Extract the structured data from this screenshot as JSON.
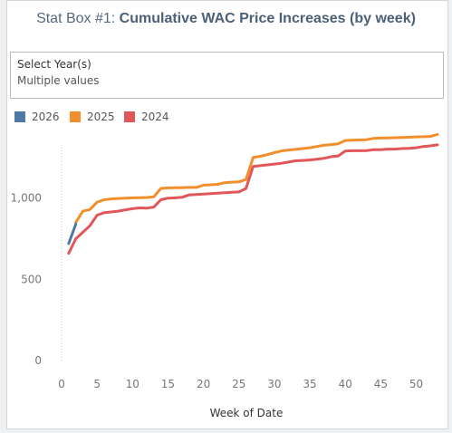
{
  "header": {
    "title_prefix": "Stat Box #1: ",
    "title_main": "Cumulative WAC Price Increases (by week)"
  },
  "filter": {
    "label": "Select Year(s)",
    "value": "Multiple values"
  },
  "chart_data": {
    "type": "line",
    "xlabel": "Week of Date",
    "ylabel": "",
    "xlim": [
      0,
      53
    ],
    "ylim": [
      0,
      1400
    ],
    "x_ticks": [
      0,
      5,
      10,
      15,
      20,
      25,
      30,
      35,
      40,
      45,
      50
    ],
    "y_ticks": [
      0,
      500,
      1000
    ],
    "y_tick_labels": [
      "0",
      "500",
      "1,000"
    ],
    "legend_position": "top-left",
    "series": [
      {
        "name": "2024",
        "color": "#e15759",
        "points": [
          [
            1,
            660
          ],
          [
            2,
            750
          ],
          [
            3,
            790
          ],
          [
            4,
            830
          ],
          [
            5,
            895
          ],
          [
            6,
            910
          ],
          [
            7,
            915
          ],
          [
            8,
            920
          ],
          [
            9,
            928
          ],
          [
            10,
            935
          ],
          [
            11,
            940
          ],
          [
            12,
            938
          ],
          [
            13,
            945
          ],
          [
            14,
            990
          ],
          [
            15,
            1000
          ],
          [
            16,
            1002
          ],
          [
            17,
            1005
          ],
          [
            18,
            1020
          ],
          [
            19,
            1022
          ],
          [
            20,
            1025
          ],
          [
            21,
            1028
          ],
          [
            22,
            1030
          ],
          [
            23,
            1033
          ],
          [
            24,
            1036
          ],
          [
            25,
            1038
          ],
          [
            26,
            1060
          ],
          [
            27,
            1195
          ],
          [
            28,
            1200
          ],
          [
            29,
            1205
          ],
          [
            30,
            1210
          ],
          [
            31,
            1215
          ],
          [
            32,
            1222
          ],
          [
            33,
            1230
          ],
          [
            34,
            1232
          ],
          [
            35,
            1235
          ],
          [
            36,
            1240
          ],
          [
            37,
            1245
          ],
          [
            38,
            1255
          ],
          [
            39,
            1260
          ],
          [
            40,
            1290
          ],
          [
            41,
            1292
          ],
          [
            42,
            1292
          ],
          [
            43,
            1293
          ],
          [
            44,
            1298
          ],
          [
            45,
            1298
          ],
          [
            46,
            1302
          ],
          [
            47,
            1302
          ],
          [
            48,
            1305
          ],
          [
            49,
            1307
          ],
          [
            50,
            1310
          ],
          [
            51,
            1318
          ],
          [
            52,
            1322
          ],
          [
            53,
            1328
          ]
        ]
      },
      {
        "name": "2025",
        "color": "#f28e2b",
        "points": [
          [
            2,
            850
          ],
          [
            3,
            920
          ],
          [
            4,
            930
          ],
          [
            5,
            975
          ],
          [
            6,
            990
          ],
          [
            7,
            995
          ],
          [
            8,
            998
          ],
          [
            9,
            1000
          ],
          [
            10,
            1002
          ],
          [
            11,
            1003
          ],
          [
            12,
            1004
          ],
          [
            13,
            1008
          ],
          [
            14,
            1060
          ],
          [
            15,
            1063
          ],
          [
            16,
            1064
          ],
          [
            17,
            1065
          ],
          [
            18,
            1066
          ],
          [
            19,
            1066
          ],
          [
            20,
            1080
          ],
          [
            21,
            1082
          ],
          [
            22,
            1085
          ],
          [
            23,
            1095
          ],
          [
            24,
            1098
          ],
          [
            25,
            1100
          ],
          [
            26,
            1115
          ],
          [
            27,
            1250
          ],
          [
            28,
            1258
          ],
          [
            29,
            1268
          ],
          [
            30,
            1280
          ],
          [
            31,
            1290
          ],
          [
            32,
            1296
          ],
          [
            33,
            1300
          ],
          [
            34,
            1305
          ],
          [
            35,
            1310
          ],
          [
            36,
            1318
          ],
          [
            37,
            1325
          ],
          [
            38,
            1330
          ],
          [
            39,
            1335
          ],
          [
            40,
            1355
          ],
          [
            41,
            1357
          ],
          [
            42,
            1358
          ],
          [
            43,
            1360
          ],
          [
            44,
            1368
          ],
          [
            45,
            1370
          ],
          [
            46,
            1371
          ],
          [
            47,
            1372
          ],
          [
            48,
            1374
          ],
          [
            49,
            1375
          ],
          [
            50,
            1377
          ],
          [
            51,
            1378
          ],
          [
            52,
            1380
          ],
          [
            53,
            1392
          ]
        ]
      },
      {
        "name": "2026",
        "color": "#4e79a7",
        "points": [
          [
            1,
            720
          ],
          [
            2,
            840
          ]
        ]
      }
    ]
  }
}
